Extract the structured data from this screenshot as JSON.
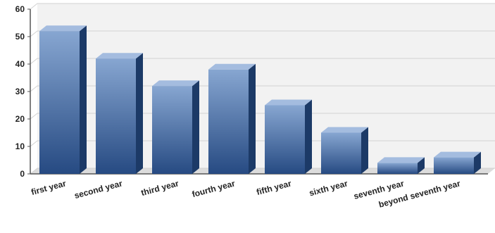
{
  "chart_data": {
    "type": "bar",
    "categories": [
      "first year",
      "second year",
      "third year",
      "fourth year",
      "fifth year",
      "sixth year",
      "seventh year",
      "beyond seventh year"
    ],
    "values": [
      52,
      42,
      32,
      38,
      25,
      15,
      4,
      6
    ],
    "ylim": [
      0,
      60
    ],
    "yticks": [
      0,
      10,
      20,
      30,
      40,
      50,
      60
    ],
    "grid": true,
    "legend": "none",
    "style": "3d",
    "colors": {
      "bar_front_top": "#87a6d1",
      "bar_front_bottom": "#264a82",
      "bar_top_face": "#a4bcdf",
      "bar_side_face": "#1c3a67",
      "plot_background": "#f2f2f2",
      "gridline": "#d2d2d2",
      "axis": "#555555"
    }
  }
}
